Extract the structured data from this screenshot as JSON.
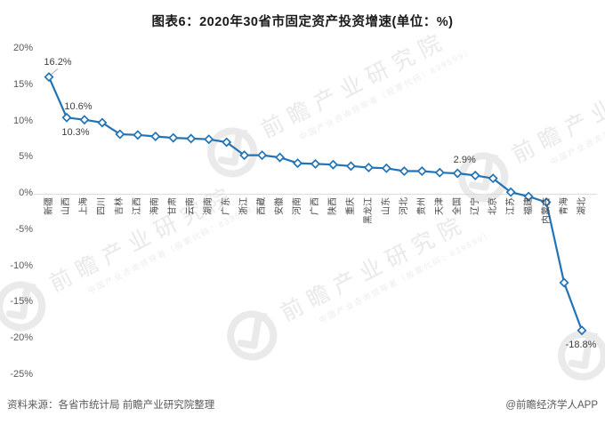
{
  "title": "图表6：2020年30省市固定资产投资增速(单位：%)",
  "footer": {
    "source_note": "资料来源：各省市统计局 前瞻产业研究院整理",
    "credit": "@前瞻经济学人APP"
  },
  "watermark": {
    "main": "前瞻产业研究院",
    "sub": "中国产业咨询领导者（股票代码：839599）"
  },
  "chart_data": {
    "type": "line",
    "title": "图表6：2020年30省市固定资产投资增速(单位：%)",
    "unit": "%",
    "categories": [
      "新疆",
      "山西",
      "上海",
      "四川",
      "吉林",
      "江西",
      "海南",
      "甘肃",
      "云南",
      "湖南",
      "广东",
      "浙江",
      "西藏",
      "安徽",
      "河南",
      "广西",
      "陕西",
      "重庆",
      "黑龙江",
      "山东",
      "河北",
      "贵州",
      "天津",
      "全国",
      "辽宁",
      "北京",
      "江苏",
      "福建",
      "内蒙古",
      "青海",
      "湖北"
    ],
    "values": [
      16.2,
      10.6,
      10.3,
      9.9,
      8.3,
      8.2,
      8.0,
      7.8,
      7.7,
      7.6,
      7.2,
      5.4,
      5.4,
      5.1,
      4.3,
      4.2,
      4.1,
      3.9,
      3.7,
      3.6,
      3.2,
      3.2,
      3.0,
      2.9,
      2.6,
      2.2,
      0.3,
      -0.3,
      -1.1,
      -12.2,
      -18.8
    ],
    "ylim": [
      -25,
      20
    ],
    "ytick_step": 5,
    "ytick_labels": [
      "20%",
      "15%",
      "10%",
      "5%",
      "0%",
      "-5%",
      "-10%",
      "-15%",
      "-20%",
      "-25%"
    ],
    "grid": false,
    "legend": "none",
    "line_color": "#2273b5",
    "marker": "diamond-white-fill",
    "zero_axis_color": "#d9d9d9",
    "annotations": [
      {
        "index": 0,
        "text": "16.2%"
      },
      {
        "index": 1,
        "text": "10.6%"
      },
      {
        "index": 2,
        "text": "10.3%"
      },
      {
        "index": 23,
        "text": "2.9%"
      },
      {
        "index": 30,
        "text": "-18.8%"
      }
    ]
  }
}
